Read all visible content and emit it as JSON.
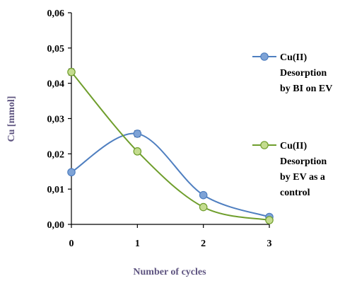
{
  "chart_data": {
    "type": "line",
    "xlabel": "Number  of cycles",
    "ylabel": "Cu  [mmol]",
    "x_ticks": [
      "0",
      "1",
      "2",
      "3"
    ],
    "y_ticks": [
      "0,00",
      "0,01",
      "0,02",
      "0,03",
      "0,04",
      "0,05",
      "0,06"
    ],
    "xlim": [
      0,
      3
    ],
    "ylim": [
      0,
      0.06
    ],
    "grid": false,
    "legend_position": "right",
    "series": [
      {
        "name_lines": [
          "Cu(II)",
          "Desorption",
          "by BI on EV"
        ],
        "color": "#4f7fc0",
        "marker_fill": "#7ea3d6",
        "x": [
          0,
          1,
          2,
          3
        ],
        "y": [
          0.0148,
          0.0257,
          0.0083,
          0.0021
        ],
        "error": [
          0,
          0.0009,
          0,
          0
        ]
      },
      {
        "name_lines": [
          "Cu(II)",
          "Desorption",
          "by EV as a",
          "control"
        ],
        "color": "#6f9e2c",
        "marker_fill": "#c4dc8f",
        "x": [
          0,
          1,
          2,
          3
        ],
        "y": [
          0.0432,
          0.0207,
          0.0049,
          0.0012
        ],
        "error": [
          0.0009,
          0,
          0,
          0
        ]
      }
    ]
  }
}
